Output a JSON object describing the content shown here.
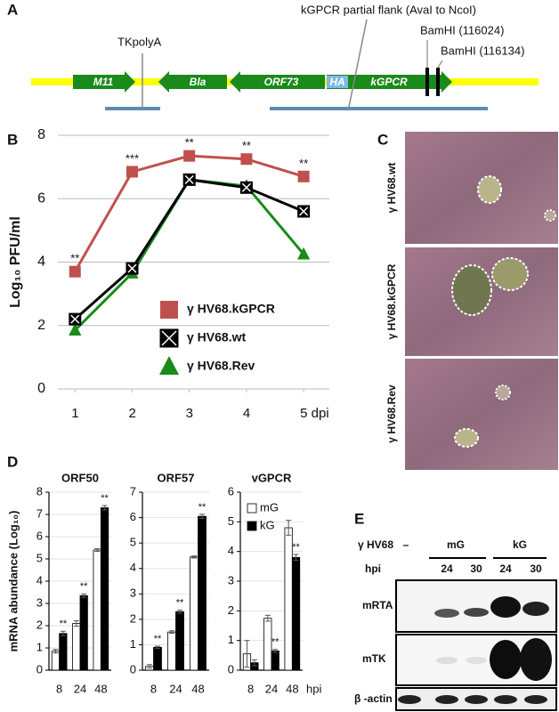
{
  "panel_labels": [
    "A",
    "B",
    "C",
    "D",
    "E"
  ],
  "diagram": {
    "genes": [
      "M11",
      "Bla",
      "ORF73",
      "HA",
      "kGPCR"
    ],
    "tk": "TKpolyA",
    "flank": "kGPCR partial flank (AvaI to NcoI)",
    "sites": [
      "BamHI (116024)",
      "BamHI (116134)"
    ]
  },
  "micrographs": {
    "labels": [
      "γ HV68.wt",
      "γ HV68.kGPCR",
      "γ HV68.Rev"
    ]
  },
  "blot": {
    "strain": "γ HV68",
    "mock": "–",
    "groups": [
      "mG",
      "kG"
    ],
    "hpi_label": "hpi",
    "times": [
      "24",
      "30",
      "24",
      "30"
    ],
    "rows": [
      "mRTA",
      "mTK",
      "β -actin"
    ]
  },
  "chart_data": [
    {
      "type": "line",
      "y_label": "Log₁₀ PFU/ml",
      "x": [
        1,
        2,
        3,
        4,
        5
      ],
      "xlim": [
        0.7,
        5.45
      ],
      "xticks": [
        1,
        2,
        3,
        4,
        {
          "value": 5,
          "label": "5 dpi"
        }
      ],
      "ylim": [
        0,
        8
      ],
      "yticks": [
        0,
        2,
        4,
        6,
        8
      ],
      "grid": true,
      "legend": "lower right",
      "series": [
        {
          "name": "γ HV68.kGPCR",
          "color": "#c0504d",
          "marker": "square",
          "values": [
            3.7,
            6.85,
            7.35,
            7.25,
            6.7
          ],
          "annotations": [
            "**",
            "***",
            "**",
            "**",
            "**"
          ]
        },
        {
          "name": "γ HV68.wt",
          "color": "#000000",
          "marker": "x-box",
          "values": [
            2.2,
            3.8,
            6.6,
            6.35,
            5.6
          ]
        },
        {
          "name": "γ HV68.Rev",
          "color": "#1a8a1a",
          "marker": "triangle",
          "values": [
            1.85,
            3.65,
            6.6,
            6.4,
            4.25
          ]
        }
      ]
    },
    {
      "type": "bar",
      "title": "ORF50",
      "y_label": "mRNA abundance (Log₁₀)",
      "categories": [
        "8",
        "24",
        "48"
      ],
      "ylim": [
        0,
        8
      ],
      "yticks": [
        0,
        1,
        2,
        3,
        4,
        5,
        6,
        7,
        8
      ],
      "grid": true,
      "series": [
        {
          "color": "#ffffff",
          "values": [
            0.85,
            2.1,
            5.4
          ],
          "errors": [
            0.08,
            0.12,
            0.06
          ]
        },
        {
          "color": "#000000",
          "values": [
            1.65,
            3.35,
            7.3
          ],
          "errors": [
            0.1,
            0.08,
            0.1
          ],
          "annotations": [
            "**",
            "**",
            "**"
          ]
        }
      ]
    },
    {
      "type": "bar",
      "title": "ORF57",
      "categories": [
        "8",
        "24",
        "48"
      ],
      "ylim": [
        0,
        7
      ],
      "yticks": [
        0,
        1,
        2,
        3,
        4,
        5,
        6,
        7
      ],
      "grid": true,
      "series": [
        {
          "color": "#ffffff",
          "values": [
            0.15,
            1.5,
            4.45
          ],
          "errors": [
            0.07,
            0.05,
            0.04
          ]
        },
        {
          "color": "#000000",
          "values": [
            0.9,
            2.3,
            6.05
          ],
          "errors": [
            0.04,
            0.06,
            0.08
          ],
          "annotations": [
            "**",
            "**",
            "**"
          ]
        }
      ]
    },
    {
      "type": "bar",
      "title": "vGPCR",
      "x_label": "hpi",
      "categories": [
        "8",
        "24",
        "48"
      ],
      "ylim": [
        0,
        6
      ],
      "yticks": [
        0,
        1,
        2,
        3,
        4,
        5,
        6
      ],
      "grid": true,
      "legend": "upper left",
      "series": [
        {
          "name": "mG",
          "color": "#ffffff",
          "values": [
            0.55,
            1.75,
            4.8
          ],
          "errors": [
            0.45,
            0.1,
            0.25
          ]
        },
        {
          "name": "kG",
          "color": "#000000",
          "values": [
            0.25,
            0.65,
            3.8
          ],
          "errors": [
            0.1,
            0.05,
            0.1
          ],
          "annotations": [
            null,
            "**",
            "**"
          ]
        }
      ]
    }
  ]
}
